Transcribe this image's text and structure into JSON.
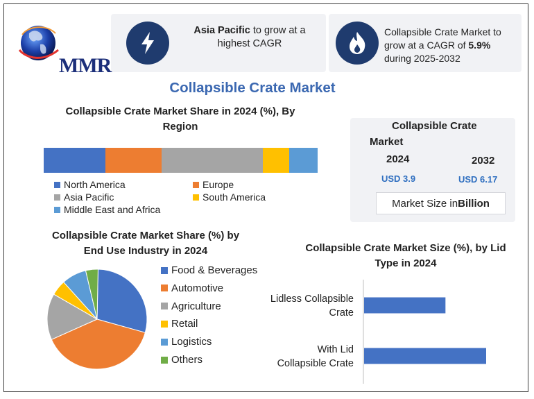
{
  "brand": {
    "logo_text": "MMR"
  },
  "callouts": [
    {
      "icon": "lightning-icon",
      "bold": "Asia Pacific",
      "text": " to grow at a highest CAGR"
    },
    {
      "icon": "flame-icon",
      "pre": "Collapsible Crate Market to grow at a CAGR of ",
      "bold": "5.9%",
      "post": " during 2025-2032"
    }
  ],
  "main_title": "Collapsible Crate Market",
  "market_size": {
    "title_line1": "Collapsible Crate",
    "title_line2": "Market",
    "years": [
      "2024",
      "2032"
    ],
    "values": [
      "USD 3.9",
      "USD 6.17"
    ],
    "unit_pre": "Market Size in ",
    "unit_bold": "Billion"
  },
  "colors": {
    "blue": "#4472c4",
    "orange": "#ed7d31",
    "gray": "#a5a5a5",
    "yellow": "#ffc000",
    "lightblue": "#5b9bd5",
    "green": "#70ad47",
    "navy": "#1f3b6e"
  },
  "chart_data": [
    {
      "type": "bar",
      "stacked": true,
      "orientation": "horizontal",
      "title": "Collapsible Crate Market Share in 2024 (%), By Region",
      "series": [
        {
          "name": "North America",
          "values": [
            22.5
          ]
        },
        {
          "name": "Europe",
          "values": [
            20.5
          ]
        },
        {
          "name": "Asia Pacific",
          "values": [
            37
          ]
        },
        {
          "name": "South America",
          "values": [
            9.5
          ]
        },
        {
          "name": "Middle East and Africa",
          "values": [
            10.5
          ]
        }
      ],
      "legend": "bottom"
    },
    {
      "type": "pie",
      "title": "Collapsible Crate Market Share (%) by End Use Industry in 2024",
      "categories": [
        "Food & Beverages",
        "Automotive",
        "Agriculture",
        "Retail",
        "Logistics",
        "Others"
      ],
      "values": [
        29,
        39,
        15,
        5,
        8,
        4
      ],
      "legend": "right"
    },
    {
      "type": "bar",
      "orientation": "horizontal",
      "title": "Collapsible Crate Market Size (%), by Lid Type in 2024",
      "categories": [
        "Lidless Collapsible Crate",
        "With Lid Collapsible Crate"
      ],
      "category_lines": [
        [
          "Lidless Collapsible",
          "Crate"
        ],
        [
          "With Lid",
          "Collapsible Crate"
        ]
      ],
      "values": [
        40,
        60
      ],
      "xlim": [
        0,
        60
      ]
    }
  ]
}
